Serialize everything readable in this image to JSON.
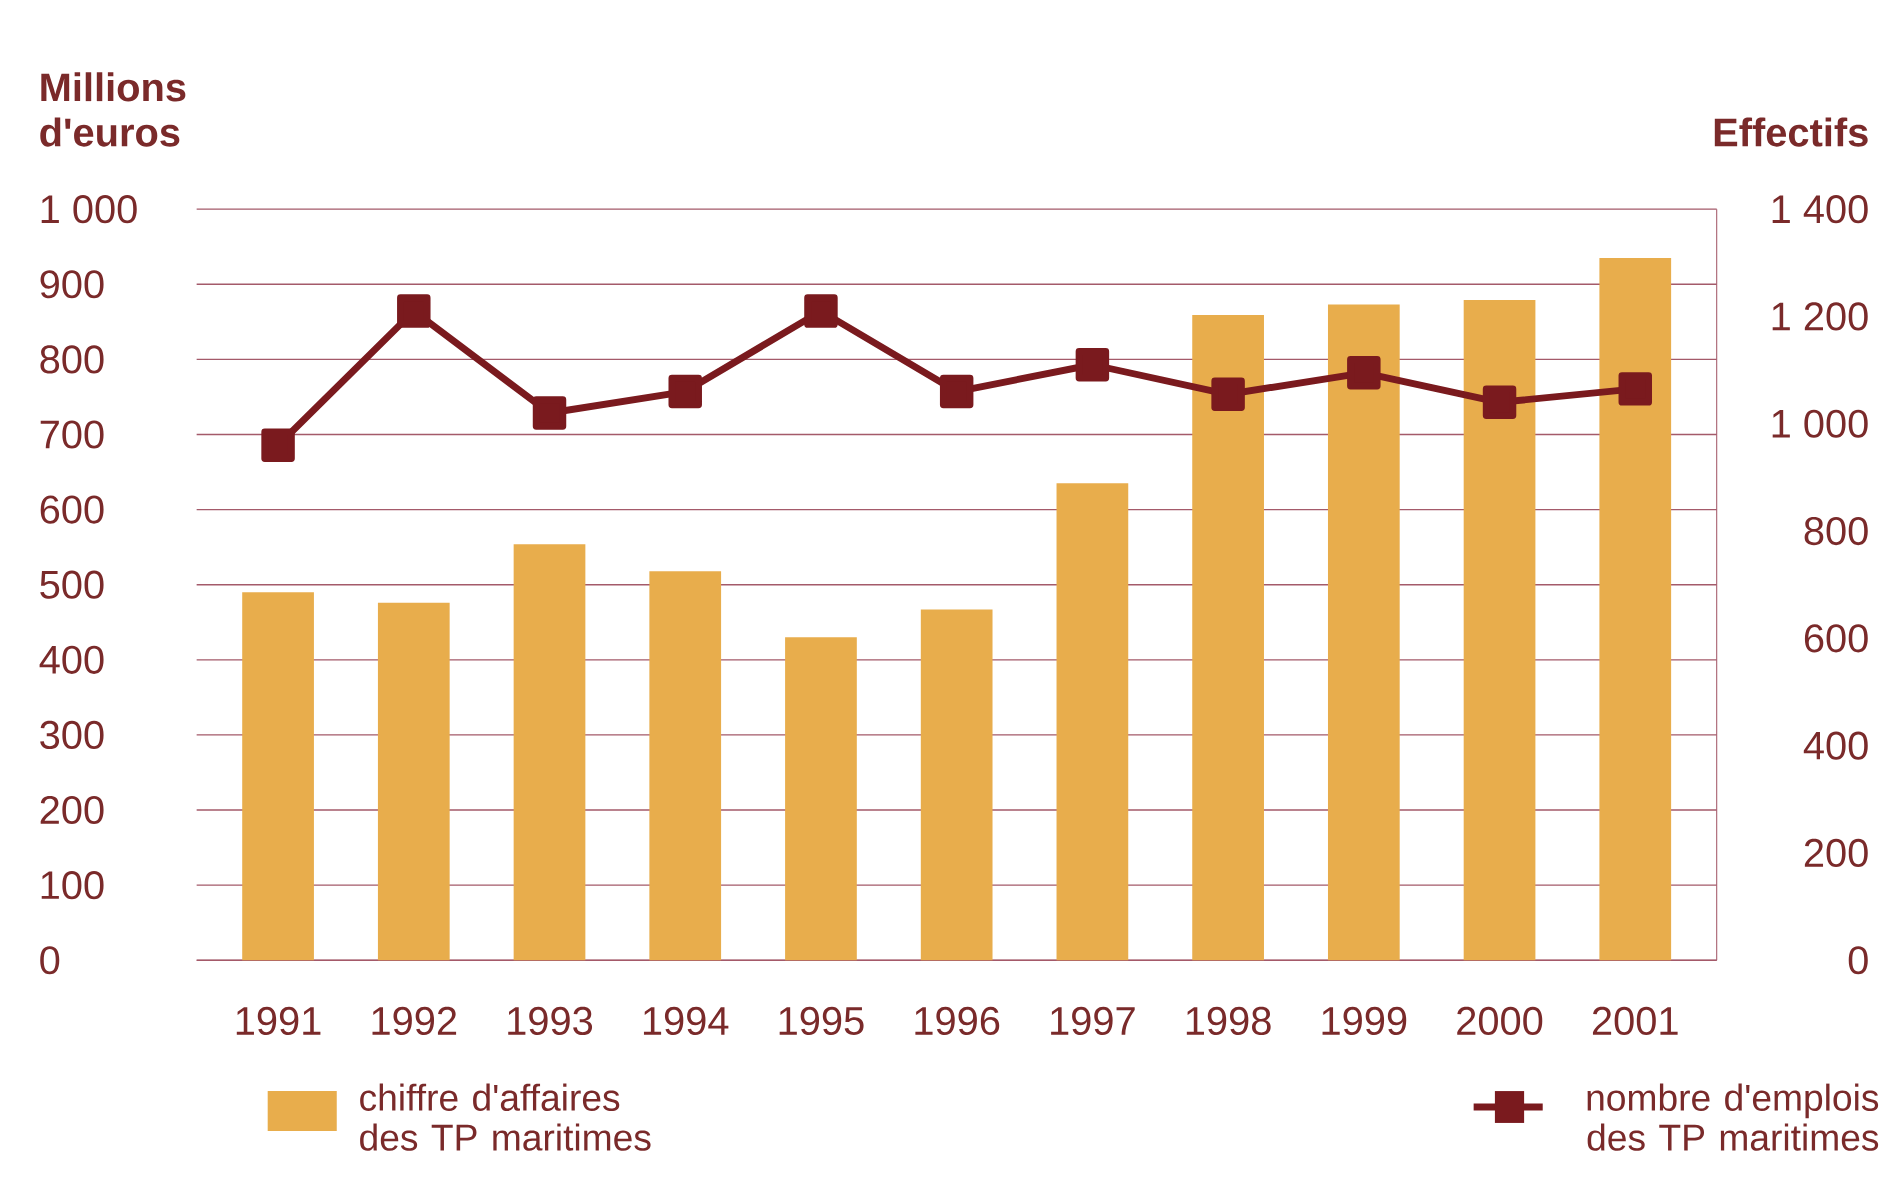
{
  "chart_data": {
    "type": "bar",
    "ylabel": "Millions d'euros",
    "y2label": "Effectifs",
    "categories": [
      "1991",
      "1992",
      "1993",
      "1994",
      "1995",
      "1996",
      "1997",
      "1998",
      "1999",
      "2000",
      "2001"
    ],
    "series": [
      {
        "name": "chiffre d'affaires des TP maritimes",
        "color": "#e8ad4c",
        "values": [
          490,
          476,
          554,
          518,
          430,
          467,
          635,
          859,
          873,
          879,
          935
        ]
      },
      {
        "name": "nombre d'emplois des TP maritimes",
        "type": "line",
        "axis": "y2",
        "color": "#7a1a1e",
        "marker": "square",
        "values": [
          960,
          1210,
          1020,
          1060,
          1210,
          1060,
          1110,
          1055,
          1095,
          1040,
          1065
        ]
      }
    ],
    "ylim": [
      0,
      1000
    ],
    "yticks": [
      0,
      100,
      200,
      300,
      400,
      500,
      600,
      700,
      800,
      900,
      {
        "value": 1000,
        "label": "1 000"
      }
    ],
    "y2lim": [
      0,
      1400
    ],
    "y2ticks": [
      0,
      200,
      400,
      600,
      800,
      {
        "value": 1000,
        "label": "1 000"
      },
      {
        "value": 1200,
        "label": "1 200"
      },
      {
        "value": 1400,
        "label": "1 400"
      }
    ],
    "grid": "y",
    "legend": "bottom"
  }
}
